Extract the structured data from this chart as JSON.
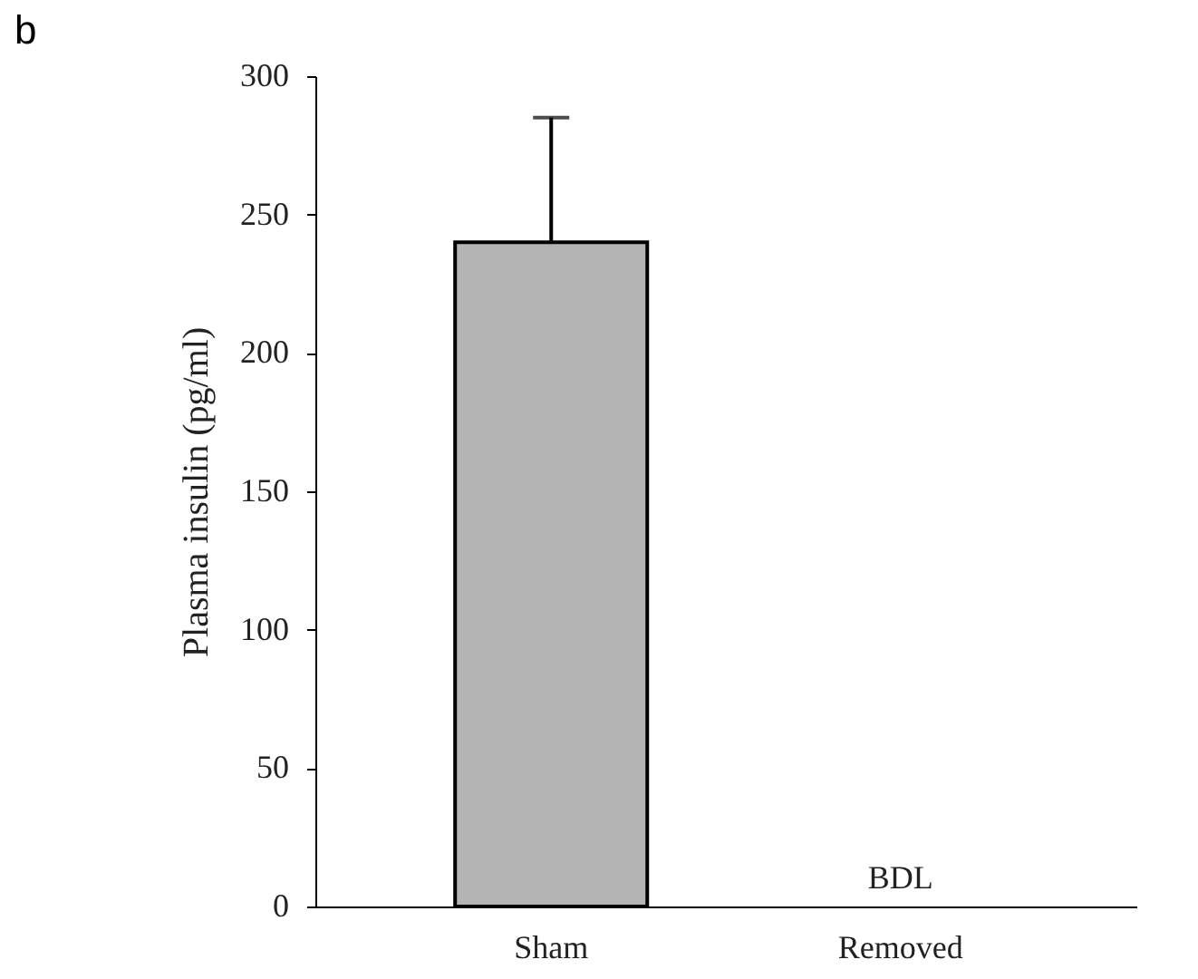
{
  "chart_data": {
    "type": "bar",
    "title": "b",
    "ylabel": "Plasma insulin (pg/ml)",
    "categories": [
      "Sham",
      "Removed"
    ],
    "values": [
      240,
      null
    ],
    "errors": [
      [
        240,
        285
      ],
      null
    ],
    "color": "#b4b4b4",
    "ylim": [
      0,
      300
    ],
    "yticks": [
      0,
      50,
      100,
      150,
      200,
      250,
      300
    ],
    "grid": false,
    "annotations": [
      "BDL"
    ]
  }
}
